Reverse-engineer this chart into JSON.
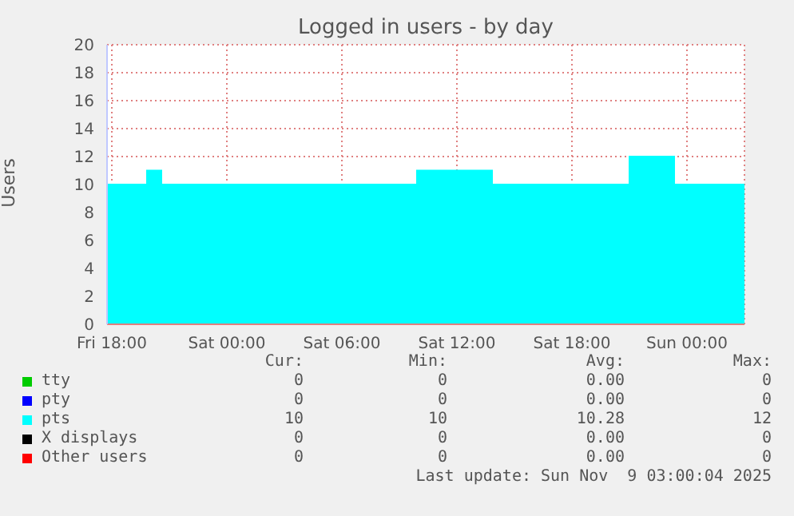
{
  "chart_data": {
    "type": "area",
    "title": "Logged in users - by day",
    "ylabel": "Users",
    "x": [
      "2025-11-07T17:45",
      "2025-11-07T19:50",
      "2025-11-07T19:50",
      "2025-11-07T20:35",
      "2025-11-07T20:35",
      "2025-11-08T09:55",
      "2025-11-08T09:55",
      "2025-11-08T13:50",
      "2025-11-08T13:50",
      "2025-11-08T21:00",
      "2025-11-08T21:00",
      "2025-11-08T23:20",
      "2025-11-08T23:20",
      "2025-11-09T03:00"
    ],
    "series": [
      {
        "name": "tty",
        "color": "#00cc00",
        "values": [
          null,
          null,
          null,
          null,
          null,
          null,
          null,
          null,
          null,
          null,
          null,
          null,
          null,
          null
        ]
      },
      {
        "name": "pty",
        "color": "#0000ff",
        "values": [
          null,
          null,
          null,
          null,
          null,
          null,
          null,
          null,
          null,
          null,
          null,
          null,
          null,
          null
        ]
      },
      {
        "name": "pts",
        "color": "#00ffff",
        "values": [
          10,
          10,
          11,
          11,
          10,
          10,
          11,
          11,
          10,
          10,
          12,
          12,
          10,
          10
        ]
      },
      {
        "name": "X displays",
        "color": "#000000",
        "values": [
          null,
          null,
          null,
          null,
          null,
          null,
          null,
          null,
          null,
          null,
          null,
          null,
          null,
          null
        ]
      },
      {
        "name": "Other users",
        "color": "#ff0000",
        "values": [
          null,
          null,
          null,
          null,
          null,
          null,
          null,
          null,
          null,
          null,
          null,
          null,
          null,
          null
        ]
      }
    ],
    "xlim": [
      "2025-11-07T17:45",
      "2025-11-09T03:00"
    ],
    "xticks": [
      {
        "value": "2025-11-07T18:00",
        "label": "Fri 18:00"
      },
      {
        "value": "2025-11-08T00:00",
        "label": "Sat 00:00"
      },
      {
        "value": "2025-11-08T06:00",
        "label": "Sat 06:00"
      },
      {
        "value": "2025-11-08T12:00",
        "label": "Sat 12:00"
      },
      {
        "value": "2025-11-08T18:00",
        "label": "Sat 18:00"
      },
      {
        "value": "2025-11-09T00:00",
        "label": "Sun 00:00"
      }
    ],
    "ylim": [
      0,
      20
    ],
    "yticks": [
      0,
      2,
      4,
      6,
      8,
      10,
      12,
      14,
      16,
      18,
      20
    ],
    "grid": true,
    "legend": "bottom",
    "annotations": [
      "Cur:",
      "Min:",
      "Avg:",
      "Max:",
      "0",
      "0",
      "0.00",
      "0",
      "0",
      "0",
      "0.00",
      "0",
      "10",
      "10",
      "10.28",
      "12",
      "0",
      "0",
      "0.00",
      "0",
      "0",
      "0",
      "0.00",
      "0",
      "Last update: Sun Nov  9 03:00:04 2025"
    ]
  }
}
